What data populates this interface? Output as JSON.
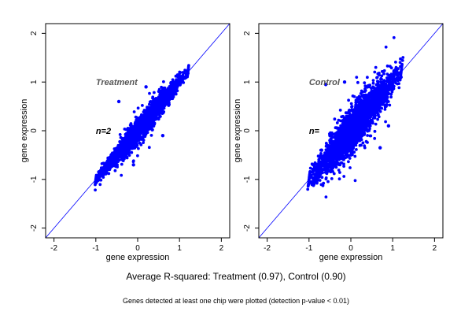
{
  "figure": {
    "caption": "Average R-squared: Treatment (0.97), Control (0.90)",
    "note": "Genes detected at least one chip were plotted (detection p-value < 0.01)"
  },
  "chart_data": [
    {
      "type": "scatter",
      "title": "",
      "panel_label": "Treatment",
      "n_label": "n=2",
      "xlabel": "gene expression",
      "ylabel": "gene expression",
      "xlim": [
        -2.2,
        2.2
      ],
      "ylim": [
        -2.2,
        2.2
      ],
      "xticks": [
        -2,
        -1,
        0,
        1,
        2
      ],
      "yticks": [
        -2,
        -1,
        0,
        1,
        2
      ],
      "reference_line": "y = x",
      "point_color": "#0000ff",
      "line_color": "#0000ff",
      "label_color": "#555555",
      "r_squared": 0.97,
      "cloud": {
        "x_range": [
          -1.0,
          1.2
        ],
        "spread": 0.13,
        "outliers": 0.04
      },
      "points": [
        [
          -1.0,
          -1.05
        ],
        [
          -0.9,
          -0.85
        ],
        [
          -0.8,
          -0.82
        ],
        [
          -0.7,
          -0.6
        ],
        [
          -0.6,
          -0.62
        ],
        [
          -0.5,
          -0.4
        ],
        [
          -0.4,
          -0.45
        ],
        [
          -0.3,
          -0.2
        ],
        [
          -0.2,
          -0.25
        ],
        [
          -0.1,
          0.0
        ],
        [
          0.0,
          -0.05
        ],
        [
          0.1,
          0.15
        ],
        [
          0.2,
          0.18
        ],
        [
          0.3,
          0.35
        ],
        [
          0.4,
          0.38
        ],
        [
          0.5,
          0.55
        ],
        [
          0.6,
          0.58
        ],
        [
          0.7,
          0.75
        ],
        [
          0.8,
          0.78
        ],
        [
          0.9,
          0.95
        ],
        [
          1.0,
          1.0
        ],
        [
          1.1,
          1.1
        ],
        [
          1.2,
          1.18
        ],
        [
          -0.45,
          0.6
        ],
        [
          0.2,
          0.9
        ],
        [
          0.6,
          -0.1
        ],
        [
          -0.1,
          -0.7
        ],
        [
          0.35,
          0.02
        ]
      ]
    },
    {
      "type": "scatter",
      "title": "",
      "panel_label": "Control",
      "n_label": "n=",
      "xlabel": "gene expression",
      "ylabel": "gene expression",
      "xlim": [
        -2.2,
        2.2
      ],
      "ylim": [
        -2.2,
        2.2
      ],
      "xticks": [
        -2,
        -1,
        0,
        1,
        2
      ],
      "yticks": [
        -2,
        -1,
        0,
        1,
        2
      ],
      "reference_line": "y = x",
      "point_color": "#0000ff",
      "line_color": "#0000ff",
      "label_color": "#555555",
      "r_squared": 0.9,
      "cloud": {
        "x_range": [
          -1.0,
          1.2
        ],
        "spread": 0.24,
        "outliers": 0.08
      },
      "points": [
        [
          -1.0,
          -1.08
        ],
        [
          -0.9,
          -0.7
        ],
        [
          -0.8,
          -0.95
        ],
        [
          -0.7,
          -0.4
        ],
        [
          -0.6,
          -0.75
        ],
        [
          -0.5,
          -0.2
        ],
        [
          -0.4,
          -0.55
        ],
        [
          -0.3,
          0.05
        ],
        [
          -0.2,
          -0.35
        ],
        [
          -0.1,
          0.2
        ],
        [
          0.0,
          -0.2
        ],
        [
          0.1,
          0.4
        ],
        [
          0.2,
          0.0
        ],
        [
          0.3,
          0.55
        ],
        [
          0.4,
          0.2
        ],
        [
          0.5,
          0.7
        ],
        [
          0.6,
          0.4
        ],
        [
          0.7,
          0.9
        ],
        [
          0.8,
          0.6
        ],
        [
          0.9,
          1.05
        ],
        [
          1.0,
          0.85
        ],
        [
          1.1,
          1.15
        ],
        [
          1.2,
          1.1
        ],
        [
          -0.6,
          0.95
        ],
        [
          -0.15,
          1.0
        ],
        [
          0.7,
          -0.35
        ],
        [
          0.9,
          0.1
        ],
        [
          -0.5,
          -0.1
        ]
      ]
    }
  ]
}
